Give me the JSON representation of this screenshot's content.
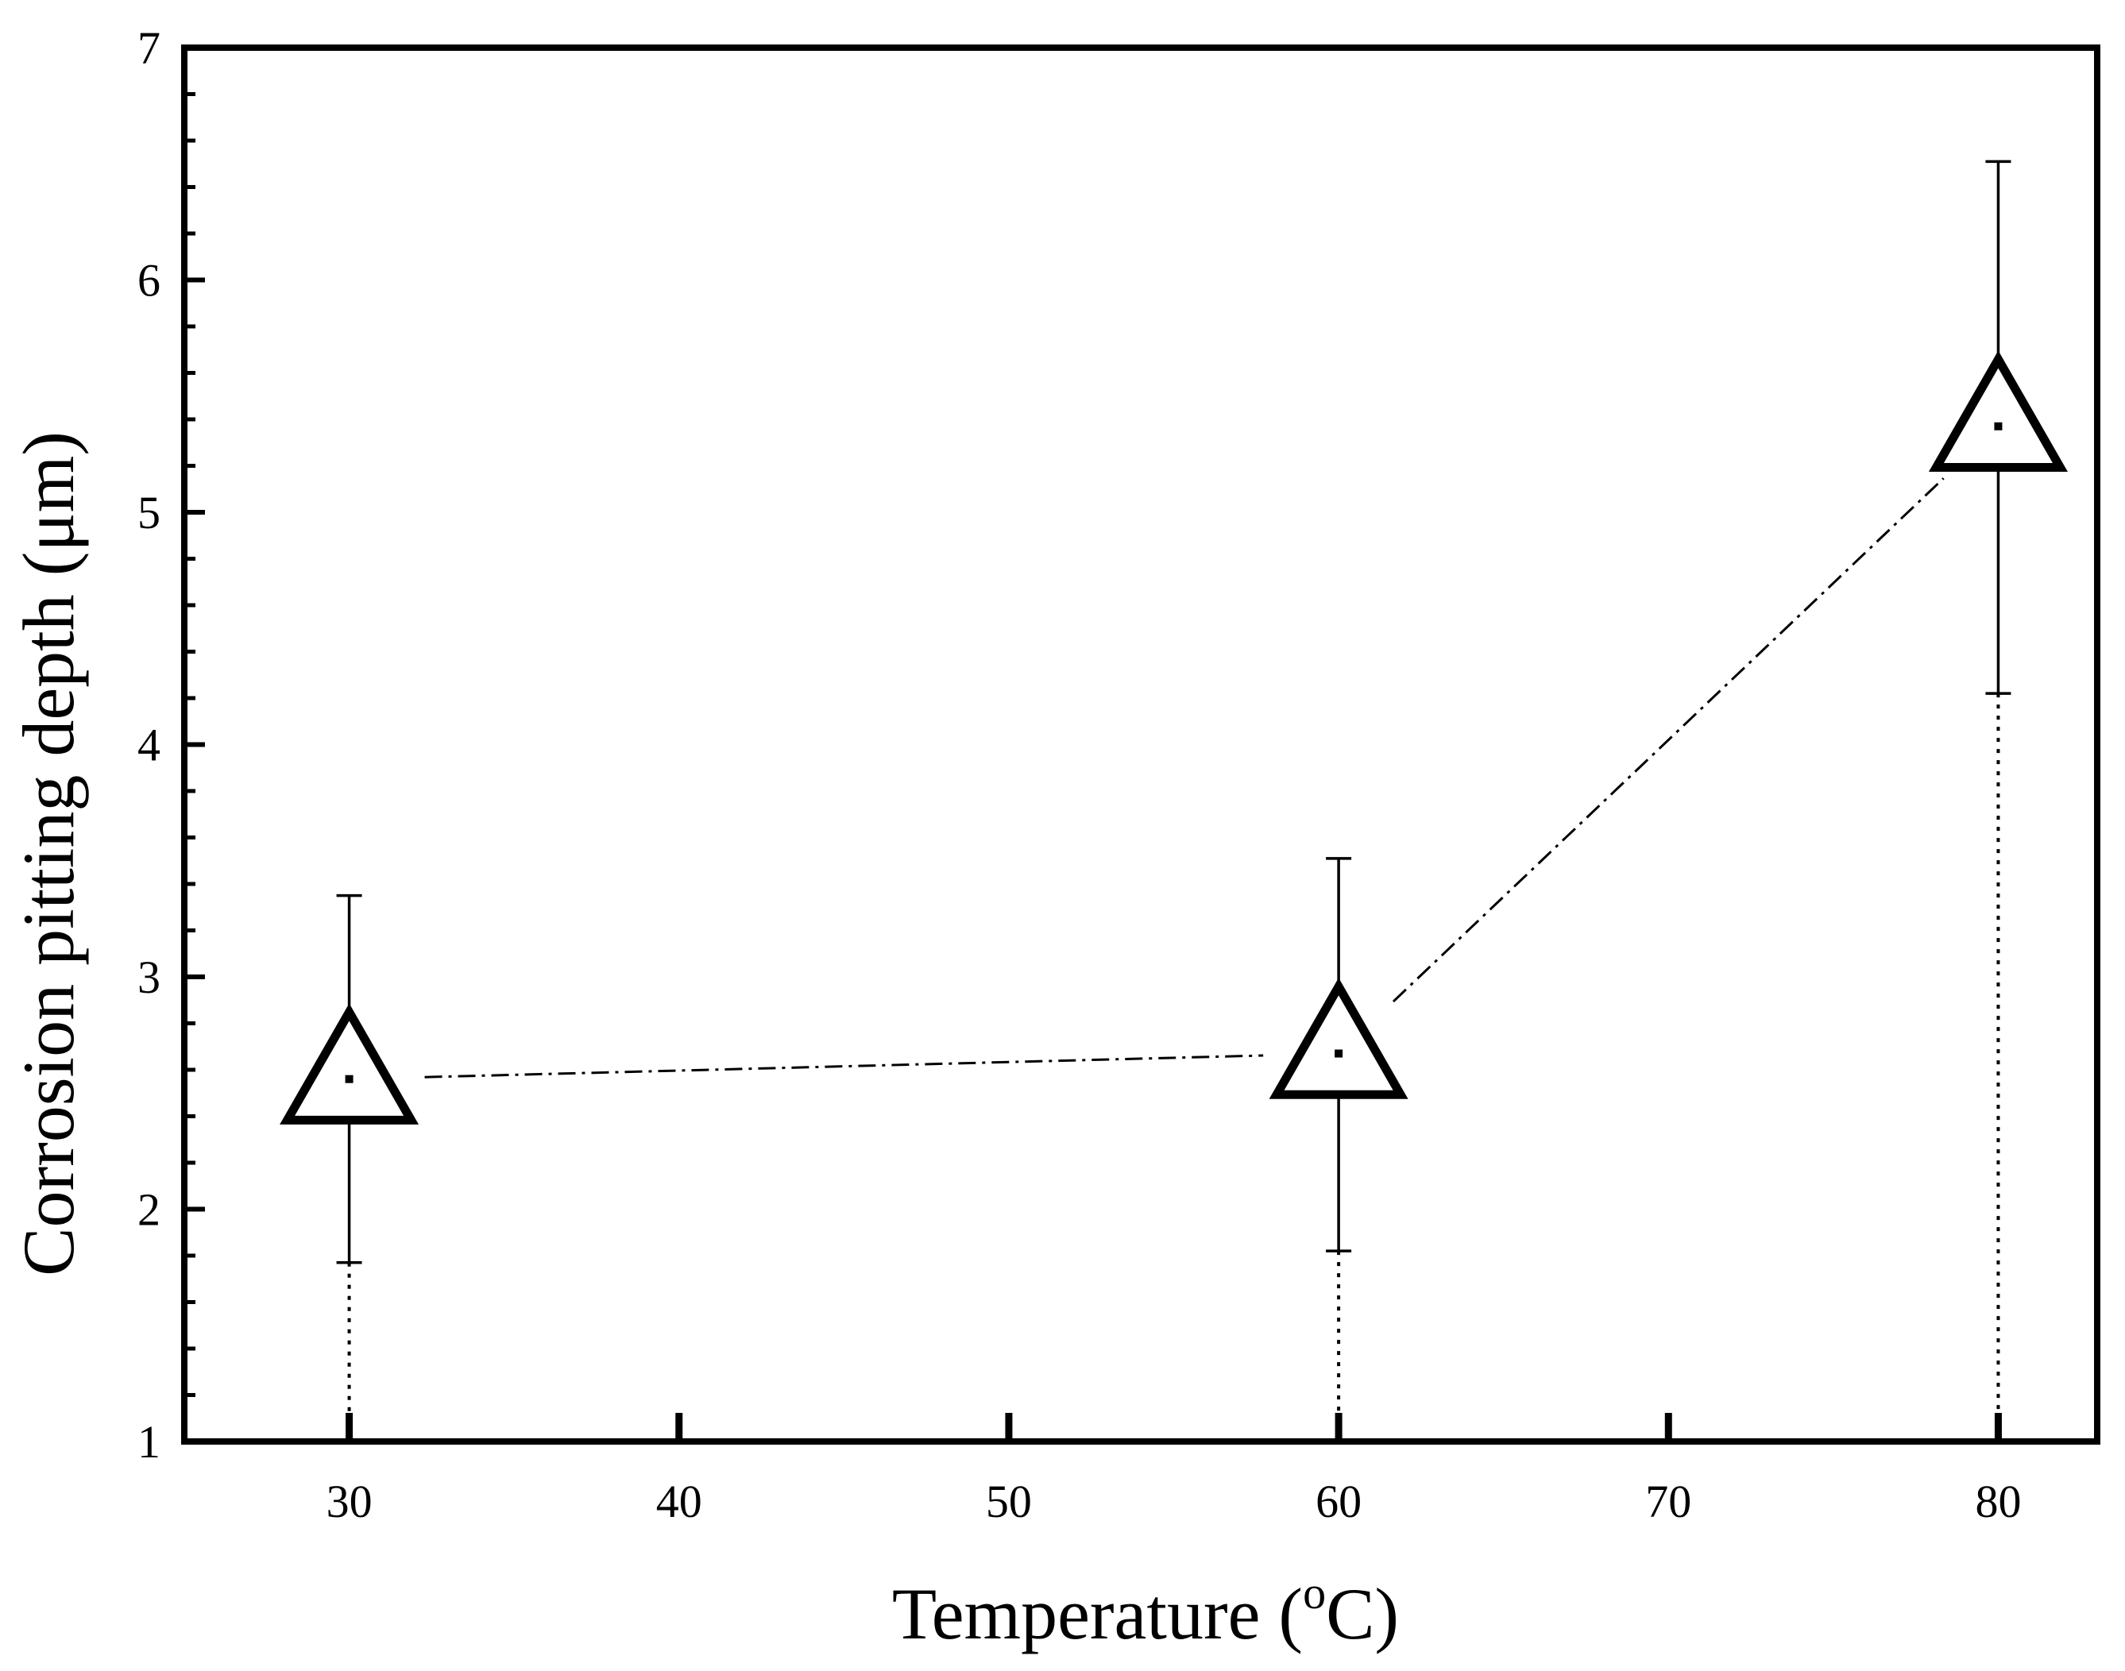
{
  "chart_data": {
    "type": "scatter",
    "title": "",
    "xlabel": "Temperature (",
    "xlabel_sup": "o",
    "xlabel_tail": "C)",
    "ylabel": "Corrosion pitting depth (μm)",
    "xlim": [
      25,
      83
    ],
    "ylim": [
      1,
      7
    ],
    "x_ticks": [
      30,
      40,
      50,
      60,
      70,
      80
    ],
    "x_tick_labels": [
      "30",
      "40",
      "50",
      "60",
      "70",
      "80"
    ],
    "y_ticks": [
      1,
      2,
      3,
      4,
      5,
      6,
      7
    ],
    "y_tick_labels": [
      "1",
      "2",
      "3",
      "4",
      "5",
      "6",
      "7"
    ],
    "y_minor_step": 0.2,
    "marker": "open-triangle",
    "line_style": "dash-dot",
    "series": [
      {
        "name": "Corrosion pitting depth",
        "x": [
          30,
          60,
          80
        ],
        "y": [
          2.56,
          2.67,
          5.37
        ],
        "y_err_low": [
          1.77,
          1.82,
          4.22
        ],
        "y_err_high": [
          3.35,
          3.51,
          6.51
        ]
      }
    ],
    "grid": false,
    "legend": "none"
  }
}
